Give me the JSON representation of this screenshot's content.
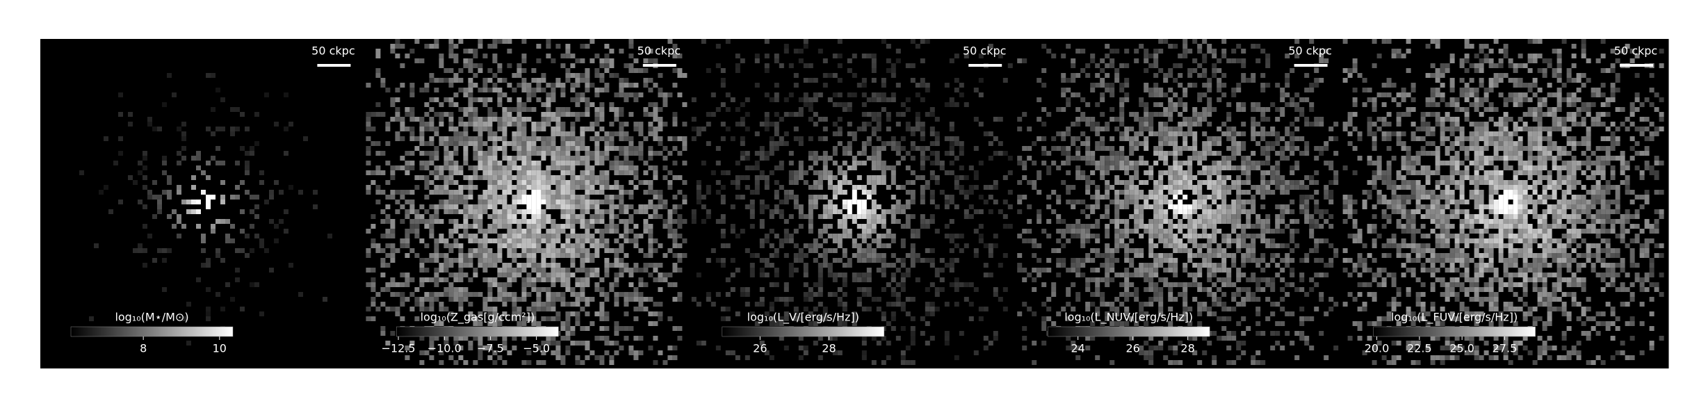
{
  "chart_data": [
    {
      "type": "image",
      "cmap": "gray",
      "scale_bar_label": "50 ckpc",
      "colorbar_label": "log₁₀(M⋆/M⊙)",
      "clim": [
        6.1,
        10.35
      ],
      "cticks": [
        8,
        10
      ]
    },
    {
      "type": "image",
      "cmap": "gray",
      "scale_bar_label": "50 ckpc",
      "colorbar_label": "log₁₀(Z_gas[g/ccm²])",
      "clim": [
        -12.6,
        -3.8
      ],
      "cticks": [
        {
          "value": -12.5,
          "label": "−12.5"
        },
        {
          "value": -10,
          "label": "−10.0"
        },
        {
          "value": -7.5,
          "label": "−7.5"
        },
        {
          "value": -5,
          "label": "−5.0"
        }
      ]
    },
    {
      "type": "image",
      "cmap": "gray",
      "scale_bar_label": "50 ckpc",
      "colorbar_label": "log₁₀(L_V/[erg/s/Hz])",
      "clim": [
        24.9,
        29.6
      ],
      "cticks": [
        26,
        28
      ]
    },
    {
      "type": "image",
      "cmap": "gray",
      "scale_bar_label": "50 ckpc",
      "colorbar_label": "log₁₀(L_NUV/[erg/s/Hz])",
      "clim": [
        22.9,
        28.8
      ],
      "cticks": [
        24,
        26,
        28
      ]
    },
    {
      "type": "image",
      "cmap": "gray",
      "scale_bar_label": "50 ckpc",
      "colorbar_label": "log₁₀(L_FUV/[erg/s/Hz])",
      "clim": [
        19.8,
        29.3
      ],
      "cticks": [
        {
          "value": 20,
          "label": "20.0"
        },
        {
          "value": 22.5,
          "label": "22.5"
        },
        {
          "value": 25,
          "label": "25.0"
        },
        {
          "value": 27.5,
          "label": "27.5"
        }
      ]
    }
  ]
}
